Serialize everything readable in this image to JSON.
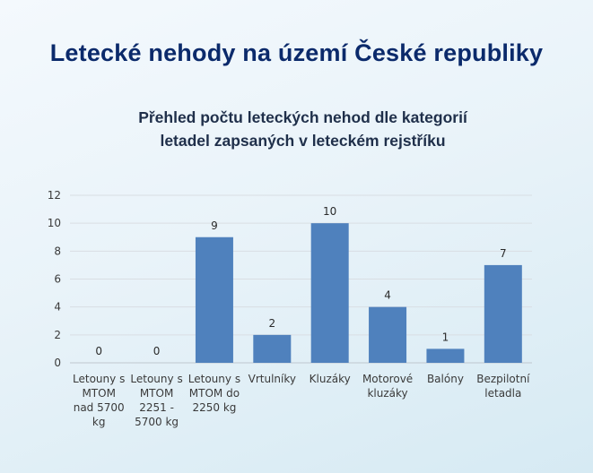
{
  "page": {
    "title": "Letecké nehody na území České republiky"
  },
  "chart_data": {
    "type": "bar",
    "title_lines": [
      "Přehled počtu leteckých nehod dle kategorií",
      "letadel zapsaných v leteckém rejstříku"
    ],
    "categories": [
      [
        "Letouny s",
        "MTOM",
        "nad 5700",
        "kg"
      ],
      [
        "Letouny s",
        "MTOM",
        "2251 -",
        "5700 kg"
      ],
      [
        "Letouny s",
        "MTOM do",
        "2250 kg"
      ],
      [
        "Vrtulníky"
      ],
      [
        "Kluzáky"
      ],
      [
        "Motorové",
        "kluzáky"
      ],
      [
        "Balóny"
      ],
      [
        "Bezpilotní",
        "letadla"
      ]
    ],
    "values": [
      0,
      0,
      9,
      2,
      10,
      4,
      1,
      7
    ],
    "value_labels": [
      "0",
      "0",
      "9",
      "2",
      "10",
      "4",
      "1",
      "7"
    ],
    "ylim": [
      0,
      12
    ],
    "yticks": [
      "0",
      "2",
      "4",
      "6",
      "8",
      "10",
      "12"
    ],
    "bar_color": "#4f81bd",
    "grid": true,
    "legend": "none"
  }
}
